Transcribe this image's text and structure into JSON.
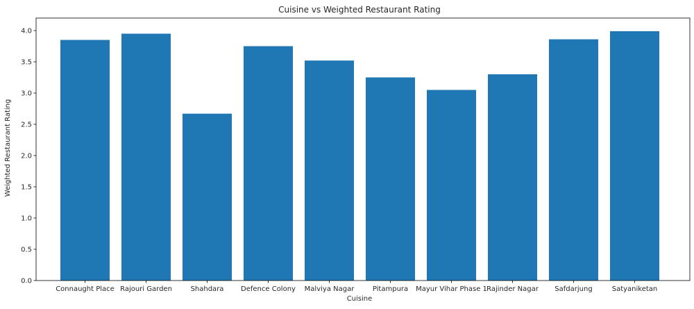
{
  "chart_data": {
    "type": "bar",
    "title": "Cuisine vs Weighted Restaurant Rating",
    "xlabel": "Cuisine",
    "ylabel": "Weighted Restaurant Rating",
    "categories": [
      "Connaught Place",
      "Rajouri Garden",
      "Shahdara",
      "Defence Colony",
      "Malviya Nagar",
      "Pitampura",
      "Mayur Vihar Phase 1",
      "Rajinder Nagar",
      "Safdarjung",
      "Satyaniketan"
    ],
    "values": [
      3.85,
      3.95,
      2.67,
      3.75,
      3.52,
      3.25,
      3.05,
      3.3,
      3.86,
      3.99
    ],
    "ylim": [
      0,
      4.2
    ],
    "yticks": [
      "0.0",
      "0.5",
      "1.0",
      "1.5",
      "2.0",
      "2.5",
      "3.0",
      "3.5",
      "4.0"
    ],
    "bar_color": "#1f77b4",
    "grid": false
  }
}
